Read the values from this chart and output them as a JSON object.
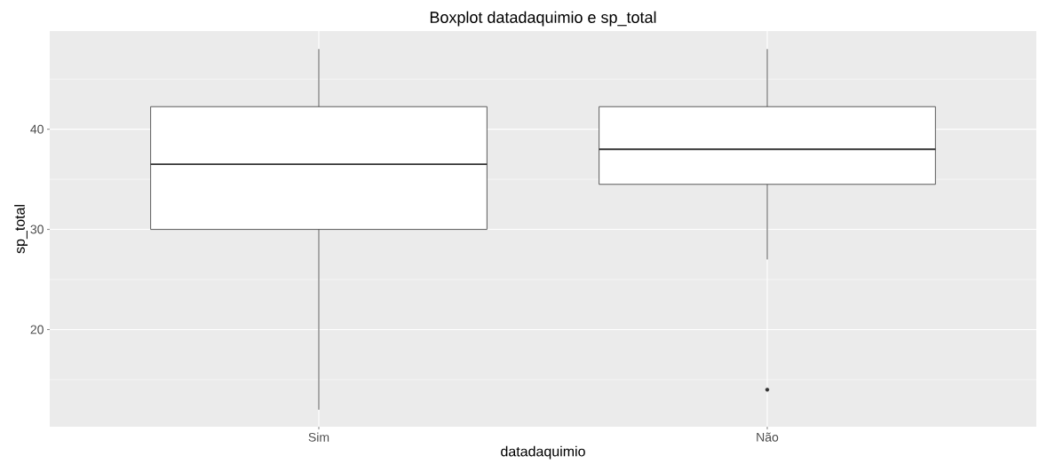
{
  "chart_data": {
    "type": "box",
    "title": "Boxplot datadaquimio e sp_total",
    "xlabel": "datadaquimio",
    "ylabel": "sp_total",
    "categories": [
      "Sim",
      "Não"
    ],
    "boxes": [
      {
        "low": 12,
        "q1": 30,
        "median": 36.5,
        "q3": 42.25,
        "high": 48
      },
      {
        "low": 27,
        "q1": 34.5,
        "median": 38,
        "q3": 42.25,
        "high": 48,
        "outliers": [
          14
        ]
      }
    ],
    "ylim": [
      10.3,
      49.8
    ],
    "yticks": [
      20,
      30,
      40
    ],
    "grid": true
  }
}
